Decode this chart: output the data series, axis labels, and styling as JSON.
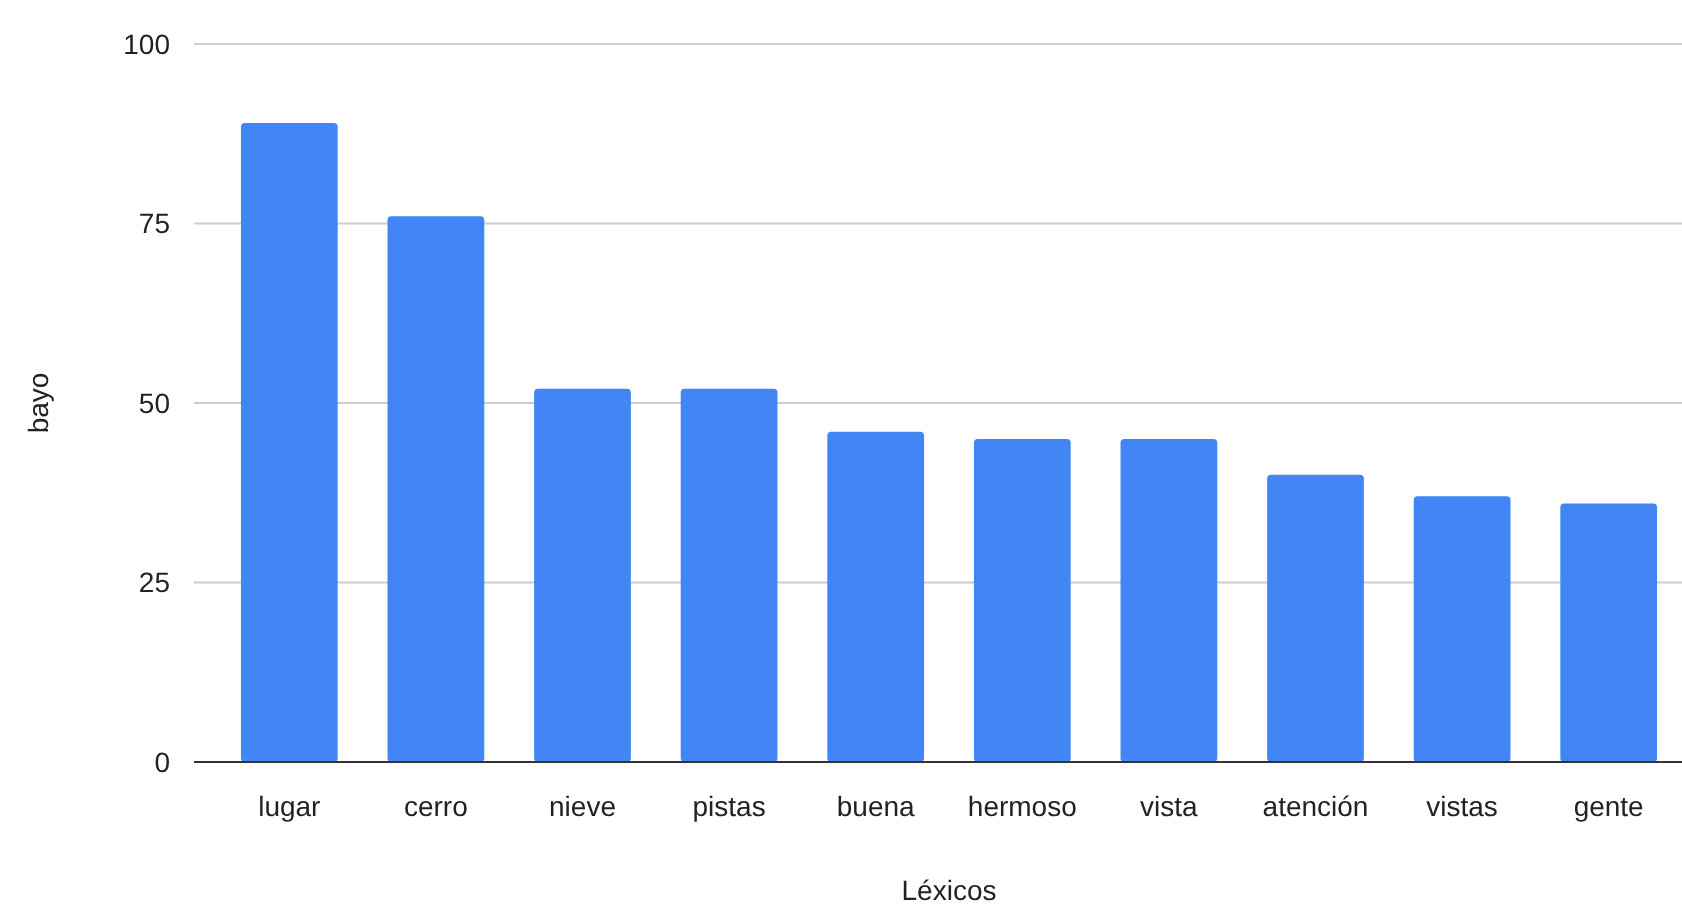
{
  "chart_data": {
    "type": "bar",
    "xlabel": "Léxicos",
    "ylabel": "bayo",
    "categories": [
      "lugar",
      "cerro",
      "nieve",
      "pistas",
      "buena",
      "hermoso",
      "vista",
      "atención",
      "vistas",
      "gente"
    ],
    "values": [
      89,
      76,
      52,
      52,
      46,
      45,
      45,
      40,
      37,
      36
    ],
    "color": "#4285f4",
    "ylim": [
      0,
      100
    ],
    "yticks": [
      0,
      25,
      50,
      75,
      100
    ],
    "grid": "y"
  }
}
